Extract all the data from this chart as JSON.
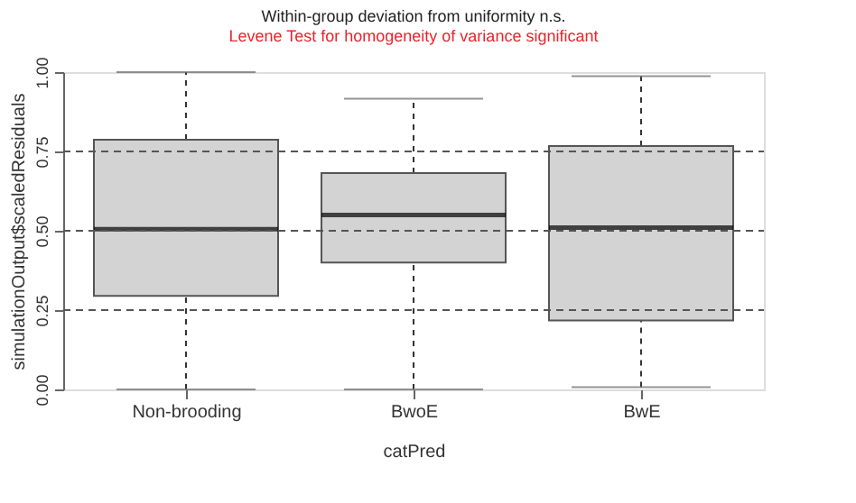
{
  "chart_data": {
    "type": "box",
    "title": "Within-group deviation from uniformity n.s.",
    "subtitle": "Levene Test for homogeneity of variance significant",
    "xlabel": "catPred",
    "ylabel": "simulationOutput$scaledResiduals",
    "categories": [
      "Non-brooding",
      "BwoE",
      "BwE"
    ],
    "color": "#d3d3d3",
    "boxes": [
      {
        "low": 0.0,
        "q1": 0.295,
        "median": 0.505,
        "q3": 0.787,
        "high": 1.0
      },
      {
        "low": 0.0,
        "q1": 0.4,
        "median": 0.55,
        "q3": 0.682,
        "high": 0.916
      },
      {
        "low": 0.007,
        "q1": 0.217,
        "median": 0.51,
        "q3": 0.767,
        "high": 0.987
      }
    ],
    "ylim": [
      0,
      1
    ],
    "yticks": [
      {
        "value": 0,
        "label": "0.00"
      },
      0.25,
      {
        "value": 0.5,
        "label": "0.50"
      },
      0.75,
      {
        "value": 1,
        "label": "1.00"
      }
    ],
    "ref_lines": [
      {
        "axis": "y",
        "value": 0.25,
        "line_style": "dashed"
      },
      {
        "axis": "y",
        "value": 0.5,
        "line_style": "dashed"
      },
      {
        "axis": "y",
        "value": 0.75,
        "line_style": "dashed"
      }
    ]
  }
}
